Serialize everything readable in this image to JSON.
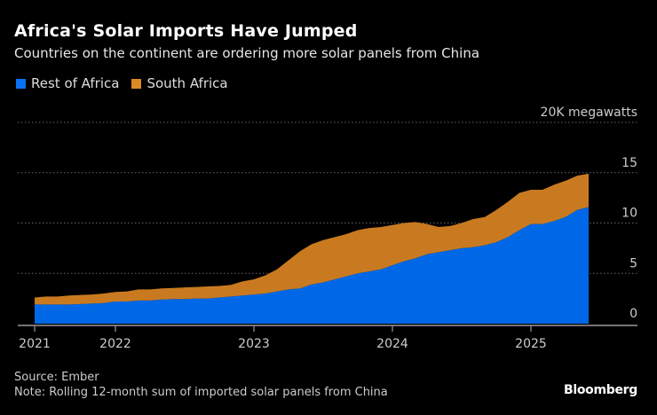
{
  "title": "Africa's Solar Imports Have Jumped",
  "subtitle": "Countries on the continent are ordering more solar panels from China",
  "source": "Source: Ember",
  "note": "Note: Rolling 12-month sum of imported solar panels from China",
  "logo": "Bloomberg",
  "chart_data": {
    "type": "area",
    "stacked": true,
    "title": "Africa's Solar Imports Have Jumped",
    "ylabel": "20K megawatts",
    "ylim": [
      0,
      20
    ],
    "yticks": [
      {
        "value": 0,
        "label": "0"
      },
      {
        "value": 5,
        "label": "5"
      },
      {
        "value": 10,
        "label": "10"
      },
      {
        "value": 15,
        "label": "15"
      },
      {
        "value": 20,
        "label": "20K megawatts"
      }
    ],
    "xticks": [
      {
        "date": "2021-06",
        "label": "2021"
      },
      {
        "date": "2022-01",
        "label": "2022"
      },
      {
        "date": "2023-01",
        "label": "2023"
      },
      {
        "date": "2024-01",
        "label": "2024"
      },
      {
        "date": "2025-01",
        "label": "2025"
      }
    ],
    "grid": true,
    "legend_position": "top-left",
    "x": [
      "2021-06",
      "2021-07",
      "2021-08",
      "2021-09",
      "2021-10",
      "2021-11",
      "2021-12",
      "2022-01",
      "2022-02",
      "2022-03",
      "2022-04",
      "2022-05",
      "2022-06",
      "2022-07",
      "2022-08",
      "2022-09",
      "2022-10",
      "2022-11",
      "2022-12",
      "2023-01",
      "2023-02",
      "2023-03",
      "2023-04",
      "2023-05",
      "2023-06",
      "2023-07",
      "2023-08",
      "2023-09",
      "2023-10",
      "2023-11",
      "2023-12",
      "2024-01",
      "2024-02",
      "2024-03",
      "2024-04",
      "2024-05",
      "2024-06",
      "2024-07",
      "2024-08",
      "2024-09",
      "2024-10",
      "2024-11",
      "2024-12",
      "2025-01",
      "2025-02",
      "2025-03",
      "2025-04",
      "2025-05",
      "2025-06"
    ],
    "series": [
      {
        "name": "Rest of Africa",
        "color": "#0068e6",
        "values": [
          1.9,
          1.9,
          1.9,
          1.9,
          1.95,
          2.0,
          2.05,
          2.2,
          2.2,
          2.3,
          2.3,
          2.4,
          2.45,
          2.45,
          2.5,
          2.5,
          2.6,
          2.7,
          2.8,
          2.9,
          3.0,
          3.2,
          3.4,
          3.5,
          3.9,
          4.1,
          4.4,
          4.7,
          5.0,
          5.2,
          5.4,
          5.8,
          6.2,
          6.5,
          6.9,
          7.1,
          7.3,
          7.5,
          7.6,
          7.8,
          8.1,
          8.6,
          9.3,
          9.9,
          9.9,
          10.2,
          10.6,
          11.3,
          11.6
        ]
      },
      {
        "name": "South Africa",
        "color": "#c97a20",
        "values": [
          0.7,
          0.8,
          0.8,
          0.9,
          0.9,
          0.9,
          0.95,
          0.95,
          1.0,
          1.1,
          1.1,
          1.1,
          1.1,
          1.15,
          1.15,
          1.2,
          1.15,
          1.15,
          1.4,
          1.5,
          1.8,
          2.2,
          2.9,
          3.7,
          4.0,
          4.2,
          4.2,
          4.2,
          4.3,
          4.3,
          4.2,
          4.0,
          3.8,
          3.6,
          3.0,
          2.5,
          2.4,
          2.5,
          2.8,
          2.8,
          3.2,
          3.5,
          3.7,
          3.4,
          3.4,
          3.6,
          3.6,
          3.4,
          3.3
        ]
      }
    ]
  }
}
